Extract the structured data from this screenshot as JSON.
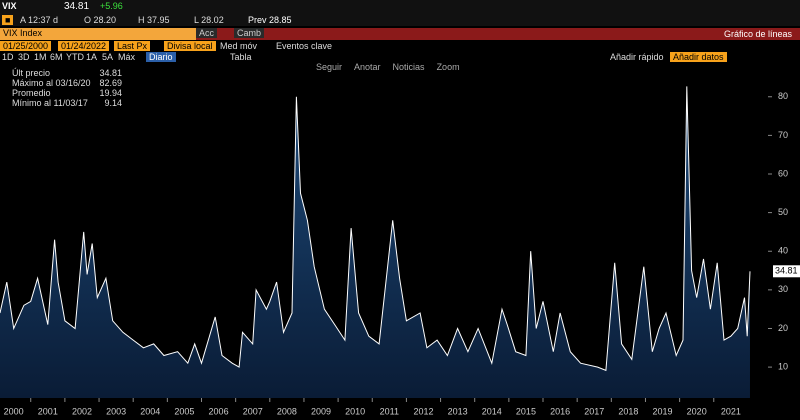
{
  "header": {
    "ticker": "VIX",
    "last": "34.81",
    "change": "+5.96",
    "time": "A 12:37 d",
    "open": "O 28.20",
    "high": "H 37.95",
    "low": "L 28.02",
    "prev": "Prev 28.85"
  },
  "toolbar": {
    "security": "VIX Index",
    "actions": "Acc",
    "change": "Camb",
    "chart_type": "Gráfico de líneas",
    "start_date": "01/25/2000",
    "end_date": "01/24/2022",
    "field": "Last Px",
    "currency": "Divisa local",
    "moving_avg": "Med móv",
    "events": "Eventos clave",
    "periods": [
      "1D",
      "3D",
      "1M",
      "6M",
      "YTD",
      "1A",
      "5A",
      "Máx"
    ],
    "frequency": "Diario",
    "table": "Tabla",
    "quick_add": "Añadir rápido",
    "add_data": "Añadir datos",
    "tools": [
      "Seguir",
      "Anotar",
      "Noticias",
      "Zoom"
    ]
  },
  "legend": [
    {
      "label": "Últ precio",
      "value": "34.81"
    },
    {
      "label": "Máximo al 03/16/20",
      "value": "82.69"
    },
    {
      "label": "Promedio",
      "value": "19.94"
    },
    {
      "label": "Mínimo al 11/03/17",
      "value": "9.14"
    }
  ],
  "chart_data": {
    "type": "area",
    "x": [
      2000.1,
      2000.3,
      2000.5,
      2000.8,
      2001.0,
      2001.2,
      2001.5,
      2001.7,
      2001.8,
      2002.0,
      2002.3,
      2002.55,
      2002.65,
      2002.8,
      2002.95,
      2003.2,
      2003.4,
      2003.7,
      2004.0,
      2004.3,
      2004.6,
      2004.9,
      2005.3,
      2005.6,
      2005.8,
      2006.0,
      2006.4,
      2006.6,
      2006.9,
      2007.1,
      2007.2,
      2007.5,
      2007.6,
      2007.9,
      2008.0,
      2008.2,
      2008.4,
      2008.65,
      2008.78,
      2008.9,
      2009.1,
      2009.3,
      2009.6,
      2009.9,
      2010.2,
      2010.38,
      2010.6,
      2010.9,
      2011.2,
      2011.6,
      2011.8,
      2012.0,
      2012.4,
      2012.6,
      2012.9,
      2013.2,
      2013.5,
      2013.8,
      2014.1,
      2014.5,
      2014.8,
      2014.95,
      2015.2,
      2015.5,
      2015.64,
      2015.8,
      2016.0,
      2016.3,
      2016.5,
      2016.8,
      2017.1,
      2017.6,
      2017.84,
      2018.1,
      2018.3,
      2018.6,
      2018.95,
      2019.2,
      2019.4,
      2019.6,
      2019.9,
      2020.1,
      2020.21,
      2020.35,
      2020.5,
      2020.7,
      2020.9,
      2021.1,
      2021.3,
      2021.5,
      2021.7,
      2021.9,
      2021.98,
      2022.06
    ],
    "series": [
      {
        "name": "VIX Index",
        "color": "#ffffff",
        "values": [
          24,
          32,
          20,
          26,
          27,
          33,
          21,
          43,
          32,
          22,
          20,
          45,
          34,
          42,
          28,
          33,
          22,
          19,
          17,
          15,
          16,
          13,
          14,
          11,
          16,
          11,
          23,
          13,
          11,
          10,
          19,
          16,
          30,
          25,
          27,
          32,
          19,
          24,
          80,
          55,
          48,
          36,
          25,
          21,
          17,
          46,
          24,
          18,
          16,
          48,
          33,
          22,
          24,
          15,
          17,
          13,
          20,
          14,
          20,
          11,
          25,
          21,
          14,
          13,
          40,
          20,
          27,
          14,
          24,
          14,
          11,
          10,
          9.14,
          37,
          16,
          12,
          36,
          14,
          20,
          24,
          13,
          17,
          82.69,
          35,
          28,
          38,
          25,
          37,
          17,
          18,
          20,
          28,
          18,
          34.81
        ]
      }
    ],
    "xlim": [
      2000.1,
      2022.5
    ],
    "xticks": [
      2000,
      2001,
      2002,
      2003,
      2004,
      2005,
      2006,
      2007,
      2008,
      2009,
      2010,
      2011,
      2012,
      2013,
      2014,
      2015,
      2016,
      2017,
      2018,
      2019,
      2020,
      2021
    ],
    "ylim": [
      2,
      89
    ],
    "yticks": [
      10,
      20,
      30,
      40,
      50,
      60,
      70,
      80
    ],
    "grid": false
  }
}
